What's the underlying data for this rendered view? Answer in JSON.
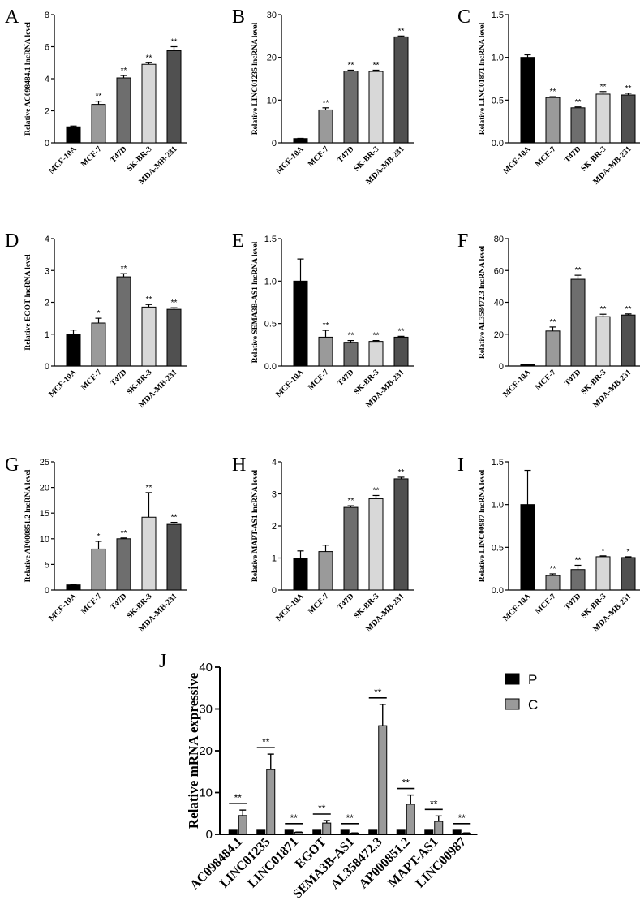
{
  "chart_data": [
    {
      "panel": "A",
      "type": "bar",
      "ylabel": "Relative AC098484.1 lncRNA level",
      "categories": [
        "MCF-10A",
        "MCF-7",
        "T47D",
        "SK-BR-3",
        "MDA-MB-231"
      ],
      "values": [
        1.0,
        2.4,
        4.05,
        4.9,
        5.75
      ],
      "errors": [
        0.05,
        0.2,
        0.15,
        0.1,
        0.25
      ],
      "significance": [
        "",
        "**",
        "**",
        "**",
        "**"
      ],
      "colors": [
        "#000000",
        "#9a9a9a",
        "#6e6e6e",
        "#d8d8d8",
        "#505050"
      ],
      "ylim": [
        0,
        8
      ],
      "yticks": [
        0,
        2,
        4,
        6,
        8
      ]
    },
    {
      "panel": "B",
      "type": "bar",
      "ylabel": "Relative LINC01235 lncRNA level",
      "categories": [
        "MCF-10A",
        "MCF-7",
        "T47D",
        "SK-BR-3",
        "MDA-MB-231"
      ],
      "values": [
        1.0,
        7.7,
        16.8,
        16.7,
        24.8
      ],
      "errors": [
        0.05,
        0.5,
        0.2,
        0.3,
        0.2
      ],
      "significance": [
        "",
        "**",
        "**",
        "**",
        "**"
      ],
      "colors": [
        "#000000",
        "#9a9a9a",
        "#6e6e6e",
        "#d8d8d8",
        "#505050"
      ],
      "ylim": [
        0,
        30
      ],
      "yticks": [
        0,
        10,
        20,
        30
      ]
    },
    {
      "panel": "C",
      "type": "bar",
      "ylabel": "Relative LINC01871 lncRNA level",
      "categories": [
        "MCF-10A",
        "MCF-7",
        "T47D",
        "SK-BR-3",
        "MDA-MB-231"
      ],
      "values": [
        1.0,
        0.53,
        0.41,
        0.57,
        0.56
      ],
      "errors": [
        0.03,
        0.01,
        0.01,
        0.03,
        0.02
      ],
      "significance": [
        "",
        "**",
        "**",
        "**",
        "**"
      ],
      "colors": [
        "#000000",
        "#9a9a9a",
        "#6e6e6e",
        "#d8d8d8",
        "#505050"
      ],
      "ylim": [
        0,
        1.5
      ],
      "yticks": [
        0.0,
        0.5,
        1.0,
        1.5
      ]
    },
    {
      "panel": "D",
      "type": "bar",
      "ylabel": "Relative EGOT lncRNA level",
      "categories": [
        "MCF-10A",
        "MCF-7",
        "T47D",
        "SK-BR-3",
        "MDA-MB-231"
      ],
      "values": [
        1.0,
        1.35,
        2.8,
        1.85,
        1.78
      ],
      "errors": [
        0.13,
        0.15,
        0.1,
        0.08,
        0.05
      ],
      "significance": [
        "",
        "*",
        "**",
        "**",
        "**"
      ],
      "colors": [
        "#000000",
        "#9a9a9a",
        "#6e6e6e",
        "#d8d8d8",
        "#505050"
      ],
      "ylim": [
        0,
        4
      ],
      "yticks": [
        0,
        1,
        2,
        3,
        4
      ]
    },
    {
      "panel": "E",
      "type": "bar",
      "ylabel": "Relative SEMA3B-AS1 lncRNA level",
      "categories": [
        "MCF-10A",
        "MCF-7",
        "T47D",
        "SK-BR-3",
        "MDA-MB-231"
      ],
      "values": [
        1.0,
        0.34,
        0.28,
        0.29,
        0.34
      ],
      "errors": [
        0.26,
        0.08,
        0.02,
        0.01,
        0.01
      ],
      "significance": [
        "",
        "**",
        "**",
        "**",
        "**"
      ],
      "colors": [
        "#000000",
        "#9a9a9a",
        "#6e6e6e",
        "#d8d8d8",
        "#505050"
      ],
      "ylim": [
        0,
        1.5
      ],
      "yticks": [
        0.0,
        0.5,
        1.0,
        1.5
      ]
    },
    {
      "panel": "F",
      "type": "bar",
      "ylabel": "Relative AL358472.3 lncRNA level",
      "categories": [
        "MCF-10A",
        "MCF-7",
        "T47D",
        "SK-BR-3",
        "MDA-MB-231"
      ],
      "values": [
        1.0,
        22,
        54.5,
        31,
        32
      ],
      "errors": [
        0.2,
        2.5,
        2.5,
        1.5,
        0.7
      ],
      "significance": [
        "",
        "**",
        "**",
        "**",
        "**"
      ],
      "colors": [
        "#000000",
        "#9a9a9a",
        "#6e6e6e",
        "#d8d8d8",
        "#505050"
      ],
      "ylim": [
        0,
        80
      ],
      "yticks": [
        0,
        20,
        40,
        60,
        80
      ]
    },
    {
      "panel": "G",
      "type": "bar",
      "ylabel": "Relative AP000851.2 lncRNA level",
      "categories": [
        "MCF-10A",
        "MCF-7",
        "T47D",
        "SK-BR-3",
        "MDA-MB-231"
      ],
      "values": [
        1.0,
        8.0,
        10.0,
        14.2,
        12.8
      ],
      "errors": [
        0.1,
        1.5,
        0.15,
        4.8,
        0.4
      ],
      "significance": [
        "",
        "*",
        "**",
        "**",
        "**"
      ],
      "colors": [
        "#000000",
        "#9a9a9a",
        "#6e6e6e",
        "#d8d8d8",
        "#505050"
      ],
      "ylim": [
        0,
        25
      ],
      "yticks": [
        0,
        5,
        10,
        15,
        20,
        25
      ]
    },
    {
      "panel": "H",
      "type": "bar",
      "ylabel": "Relative MAPT-AS1 lncRNA level",
      "categories": [
        "MCF-10A",
        "MCF-7",
        "T47D",
        "SK-BR-3",
        "MDA-MB-231"
      ],
      "values": [
        1.0,
        1.2,
        2.58,
        2.85,
        3.47
      ],
      "errors": [
        0.22,
        0.2,
        0.05,
        0.1,
        0.05
      ],
      "significance": [
        "",
        "",
        "**",
        "**",
        "**"
      ],
      "colors": [
        "#000000",
        "#9a9a9a",
        "#6e6e6e",
        "#d8d8d8",
        "#505050"
      ],
      "ylim": [
        0,
        4
      ],
      "yticks": [
        0,
        1,
        2,
        3,
        4
      ]
    },
    {
      "panel": "I",
      "type": "bar",
      "ylabel": "Relative LINC00987 lncRNA level",
      "categories": [
        "MCF-10A",
        "MCF-7",
        "T47D",
        "SK-BR-3",
        "MDA-MB-231"
      ],
      "values": [
        1.0,
        0.17,
        0.24,
        0.39,
        0.38
      ],
      "errors": [
        0.4,
        0.02,
        0.05,
        0.01,
        0.01
      ],
      "significance": [
        "",
        "**",
        "**",
        "*",
        "*"
      ],
      "colors": [
        "#000000",
        "#9a9a9a",
        "#6e6e6e",
        "#d8d8d8",
        "#505050"
      ],
      "ylim": [
        0,
        1.5
      ],
      "yticks": [
        0.0,
        0.5,
        1.0,
        1.5
      ]
    },
    {
      "panel": "J",
      "type": "bar",
      "ylabel": "Relative mRNA expressive",
      "categories": [
        "AC098484.1",
        "LINC01235",
        "LINC01871",
        "EGOT",
        "SEMA3B-AS1",
        "AL358472.3",
        "AP000851.2",
        "MAPT-AS1",
        "LINC00987"
      ],
      "series": [
        {
          "name": "P",
          "color": "#000000",
          "values": [
            1,
            1,
            1,
            1,
            1,
            1,
            1,
            1,
            1
          ],
          "errors": [
            0,
            0,
            0,
            0,
            0,
            0,
            0,
            0,
            0
          ]
        },
        {
          "name": "C",
          "color": "#9a9a9a",
          "values": [
            4.5,
            15.5,
            0.5,
            2.7,
            0.3,
            26.0,
            7.2,
            3.1,
            0.3
          ],
          "errors": [
            1.3,
            3.7,
            0.05,
            0.6,
            0.05,
            5.1,
            2.2,
            1.3,
            0.05
          ]
        }
      ],
      "significance": [
        "**",
        "**",
        "**",
        "**",
        "**",
        "**",
        "**",
        "**",
        "**"
      ],
      "ylim": [
        0,
        40
      ],
      "yticks": [
        0,
        10,
        20,
        30,
        40
      ],
      "legend_position": "top-right"
    }
  ]
}
